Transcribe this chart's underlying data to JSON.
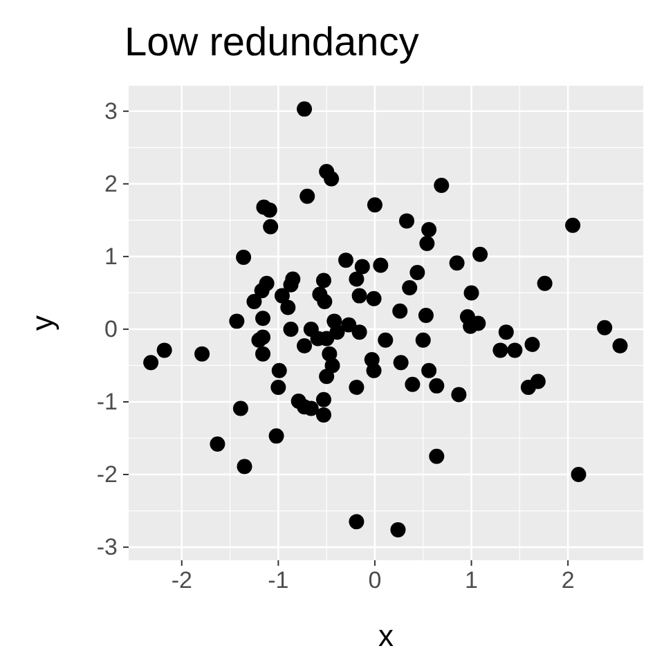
{
  "chart_data": {
    "type": "scatter",
    "title": "Low redundancy",
    "xlabel": "x",
    "ylabel": "y",
    "xlim": [
      -2.55,
      2.78
    ],
    "ylim": [
      -3.18,
      3.35
    ],
    "xticks": [
      -2,
      -1,
      0,
      1,
      2
    ],
    "yticks": [
      -3,
      -2,
      -1,
      0,
      1,
      2,
      3
    ],
    "grid": true,
    "marker": "circle",
    "series": [
      {
        "color": "#000000",
        "x": [
          -0.73,
          -0.5,
          -0.45,
          -0.7,
          0.69,
          0,
          -1.15,
          -1.09,
          -1.08,
          2.05,
          0.33,
          0.56,
          0.54,
          -1.36,
          1.09,
          0.85,
          -0.3,
          -0.13,
          0.06,
          1.76,
          -0.85,
          -0.87,
          -1.12,
          -0.53,
          0.44,
          0.36,
          -0.19,
          -1.17,
          -1.25,
          -0.96,
          -0.9,
          -0.57,
          -0.52,
          -0.01,
          -0.16,
          1.0,
          0.26,
          0.53,
          0.96,
          0.99,
          1.07,
          -1.43,
          -1.16,
          -1.16,
          -0.87,
          -0.66,
          -0.42,
          -0.39,
          -0.16,
          -0.5,
          0.5,
          0.11,
          1.36,
          2.38,
          2.54,
          -2.32,
          -2.18,
          -1.79,
          -1.2,
          -1.16,
          -0.59,
          -0.27,
          -0.47,
          -0.44,
          -0.73,
          -0.03,
          -0.01,
          0.27,
          1.3,
          1.45,
          1.63,
          0.56,
          0.39,
          0.64,
          -0.5,
          -0.19,
          1.59,
          1.69,
          0.87,
          -0.99,
          -1.0,
          -0.79,
          -0.73,
          -0.53,
          -0.66,
          -1.39,
          -0.53,
          -1.02,
          -1.63,
          -1.35,
          0.64,
          2.11,
          -0.19,
          0.24
        ],
        "values": [
          3.03,
          2.17,
          2.07,
          1.83,
          1.98,
          1.71,
          1.68,
          1.64,
          1.41,
          1.43,
          1.49,
          1.37,
          1.18,
          0.99,
          1.03,
          0.91,
          0.95,
          0.86,
          0.88,
          0.63,
          0.69,
          0.61,
          0.63,
          0.67,
          0.78,
          0.57,
          0.69,
          0.53,
          0.38,
          0.46,
          0.3,
          0.48,
          0.38,
          0.42,
          0.46,
          0.5,
          0.25,
          0.19,
          0.17,
          0.04,
          0.08,
          0.11,
          0.15,
          -0.11,
          0.0,
          0.0,
          0.11,
          -0.04,
          -0.04,
          -0.13,
          -0.15,
          -0.15,
          -0.04,
          0.02,
          -0.23,
          -0.46,
          -0.29,
          -0.34,
          -0.15,
          -0.34,
          -0.13,
          0.06,
          -0.34,
          -0.5,
          -0.23,
          -0.42,
          -0.57,
          -0.46,
          -0.29,
          -0.29,
          -0.21,
          -0.57,
          -0.76,
          -0.78,
          -0.65,
          -0.8,
          -0.8,
          -0.72,
          -0.9,
          -0.57,
          -0.8,
          -0.99,
          -1.07,
          -0.97,
          -1.09,
          -1.09,
          -1.18,
          -1.47,
          -1.58,
          -1.89,
          -1.75,
          -2.0,
          -2.65,
          -2.76
        ]
      }
    ]
  }
}
